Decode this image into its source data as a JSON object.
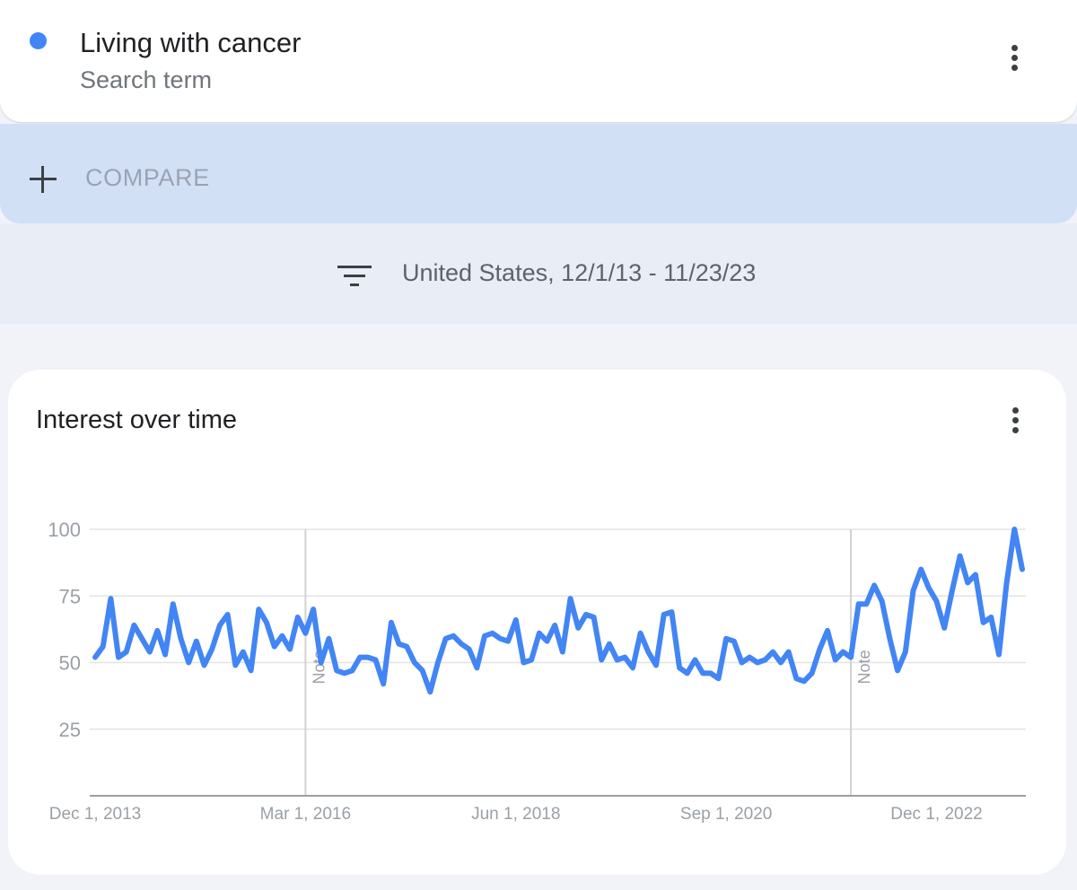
{
  "search_term": {
    "name": "Living with cancer",
    "type": "Search term",
    "color": "#4285f4"
  },
  "compare": {
    "label": "COMPARE",
    "icon": "plus-icon"
  },
  "filter": {
    "icon": "filter-icon",
    "text": "United States, 12/1/13 - 11/23/23"
  },
  "chart_card": {
    "title": "Interest over time",
    "menu_icon": "more-vert-icon"
  },
  "chart_data": {
    "type": "line",
    "title": "Interest over time",
    "xlabel": "",
    "ylabel": "",
    "x_ticks": [
      "Dec 1, 2013",
      "Mar 1, 2016",
      "Jun 1, 2018",
      "Sep 1, 2020",
      "Dec 1, 2022"
    ],
    "y_ticks": [
      25,
      50,
      75,
      100
    ],
    "ylim": [
      0,
      100
    ],
    "grid": true,
    "notes": [
      {
        "label": "Note",
        "x": "Mar 1, 2016"
      },
      {
        "label": "Note",
        "x": "Jan 2022"
      }
    ],
    "series": [
      {
        "name": "Living with cancer",
        "color": "#4285f4",
        "x_start": "Dec 1, 2013",
        "x_end": "Nov 2023",
        "x_step": "1 month",
        "values": [
          52,
          56,
          74,
          52,
          54,
          64,
          59,
          54,
          62,
          53,
          72,
          59,
          50,
          58,
          49,
          55,
          64,
          68,
          49,
          54,
          47,
          70,
          65,
          56,
          60,
          55,
          67,
          61,
          70,
          50,
          59,
          47,
          46,
          47,
          52,
          52,
          51,
          42,
          65,
          57,
          56,
          50,
          47,
          39,
          50,
          59,
          60,
          57,
          55,
          48,
          60,
          61,
          59,
          58,
          66,
          50,
          51,
          61,
          58,
          64,
          54,
          74,
          63,
          68,
          67,
          51,
          57,
          51,
          52,
          48,
          61,
          54,
          49,
          68,
          69,
          48,
          46,
          51,
          46,
          46,
          44,
          59,
          58,
          50,
          52,
          50,
          51,
          54,
          50,
          54,
          44,
          43,
          46,
          55,
          62,
          51,
          54,
          52,
          72,
          72,
          79,
          73,
          59,
          47,
          54,
          77,
          85,
          78,
          73,
          63,
          77,
          90,
          80,
          83,
          65,
          67,
          53,
          80,
          100,
          85
        ]
      }
    ]
  }
}
